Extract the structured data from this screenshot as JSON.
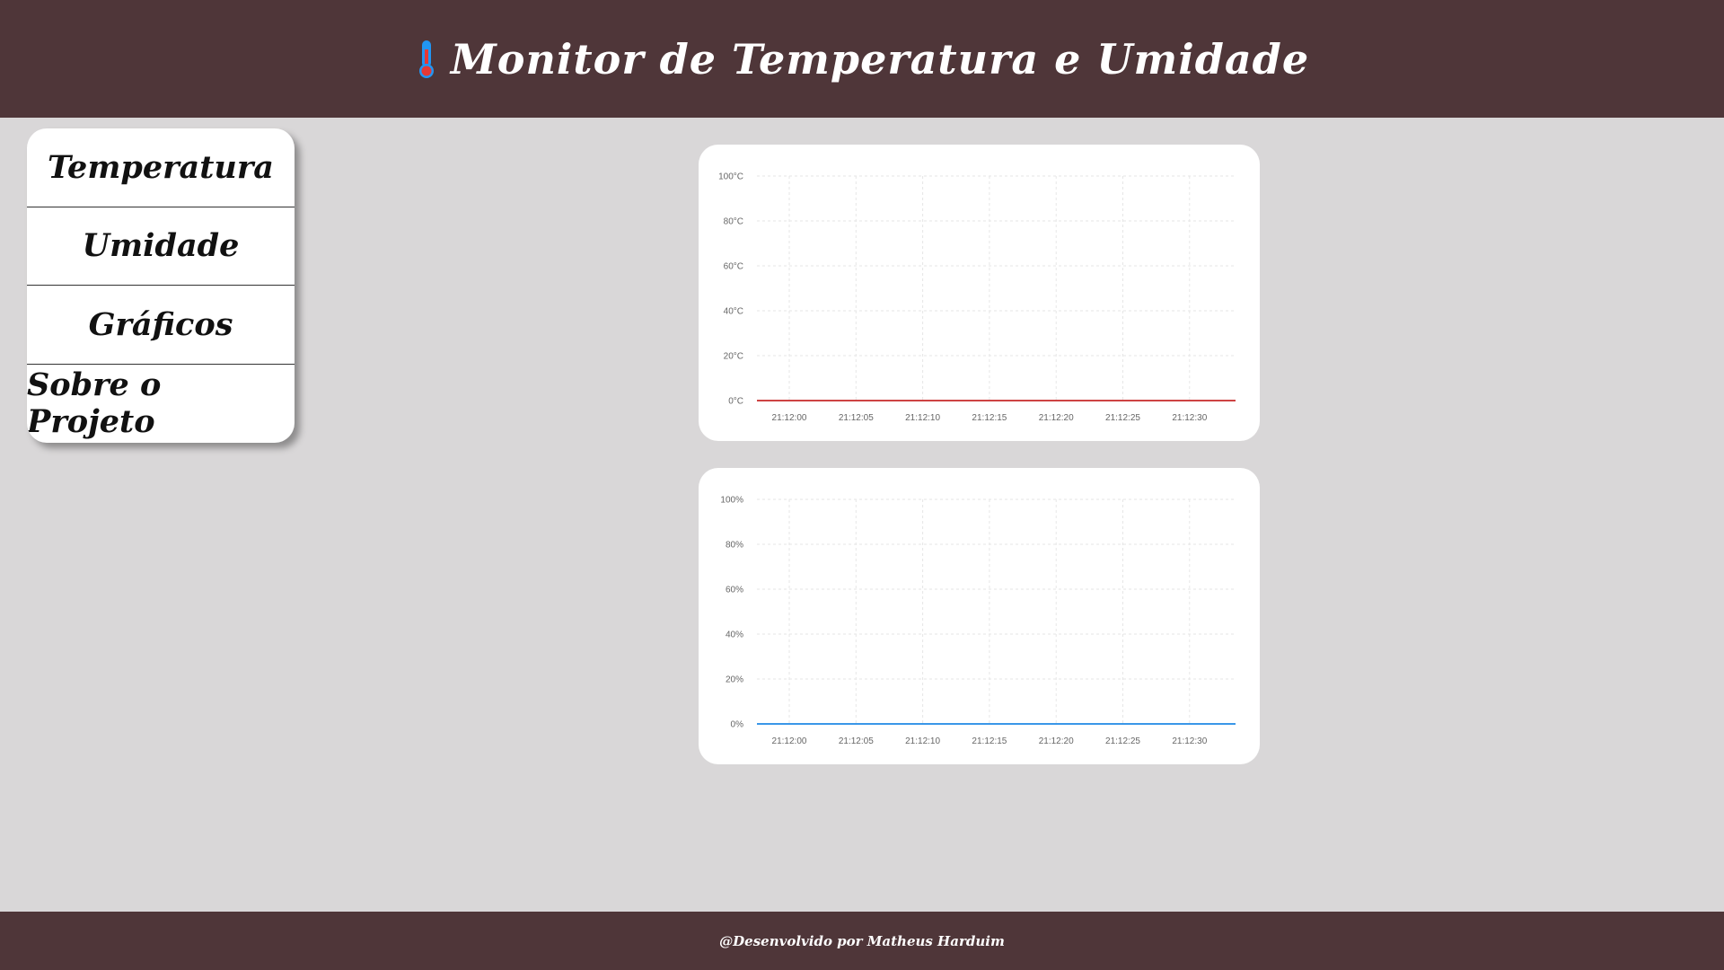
{
  "header": {
    "title": "Monitor de Temperatura e Umidade",
    "icon": "thermometer-icon"
  },
  "menu": {
    "items": [
      {
        "label": "Temperatura"
      },
      {
        "label": "Umidade"
      },
      {
        "label": "Gráficos"
      },
      {
        "label": "Sobre o Projeto"
      }
    ]
  },
  "footer": {
    "text": "@Desenvolvido por Matheus Harduim"
  },
  "chart_data": [
    {
      "type": "line",
      "x": [
        "21:12:00",
        "21:12:05",
        "21:12:10",
        "21:12:15",
        "21:12:20",
        "21:12:25",
        "21:12:30"
      ],
      "series": [
        {
          "values": [
            0,
            0,
            0,
            0,
            0,
            0,
            0
          ],
          "color": "#c62828"
        }
      ],
      "yticks": [
        "0°C",
        "20°C",
        "40°C",
        "60°C",
        "80°C",
        "100°C"
      ],
      "ylim": [
        0,
        100
      ],
      "grid": true
    },
    {
      "type": "line",
      "x": [
        "21:12:00",
        "21:12:05",
        "21:12:10",
        "21:12:15",
        "21:12:20",
        "21:12:25",
        "21:12:30"
      ],
      "series": [
        {
          "values": [
            0,
            0,
            0,
            0,
            0,
            0,
            0
          ],
          "color": "#1e88e5"
        }
      ],
      "yticks": [
        "0%",
        "20%",
        "40%",
        "60%",
        "80%",
        "100%"
      ],
      "ylim": [
        0,
        100
      ],
      "grid": true
    }
  ]
}
